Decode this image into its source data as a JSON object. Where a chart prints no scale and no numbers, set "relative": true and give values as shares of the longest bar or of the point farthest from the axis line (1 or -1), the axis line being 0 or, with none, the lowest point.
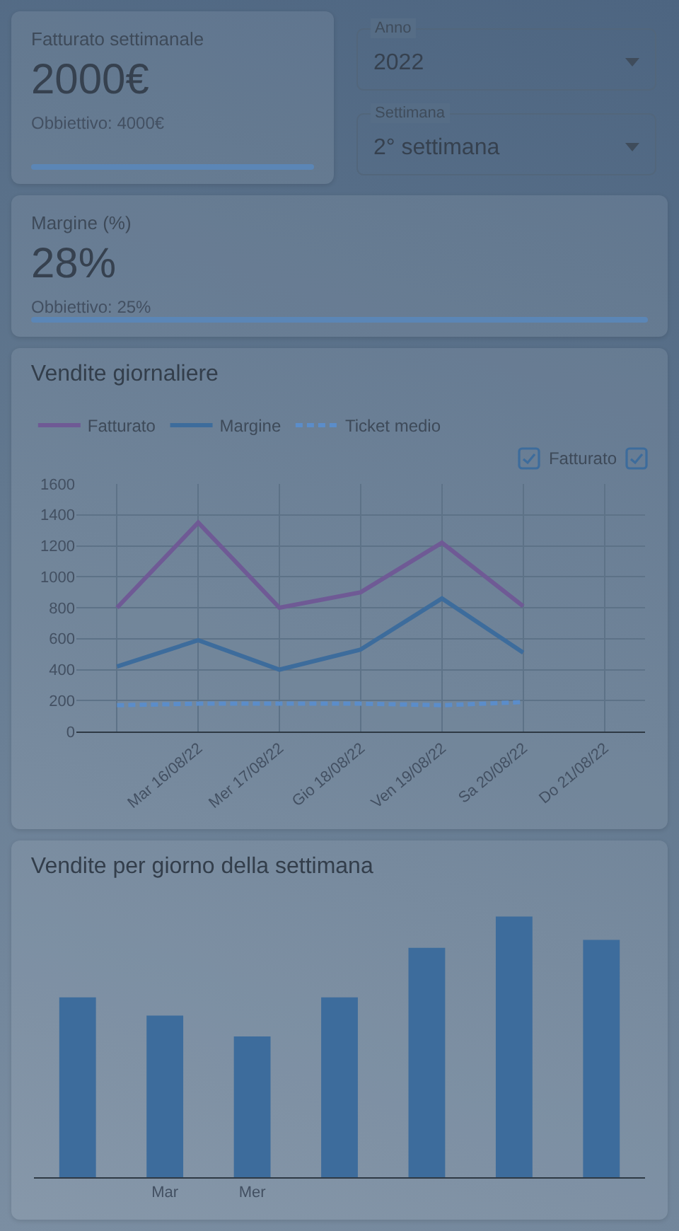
{
  "chart_data": [
    {
      "type": "other",
      "title": "Fatturato settimanale",
      "annotations": [
        "2000€",
        "Obbiettivo: 4000€"
      ]
    },
    {
      "type": "other",
      "annotations": [
        "Anno",
        "2022",
        "Settimana",
        "2° settimana"
      ]
    },
    {
      "type": "other",
      "title": "Margine (%)",
      "annotations": [
        "28%",
        "Obbiettivo: 25%"
      ]
    },
    {
      "type": "line",
      "title": "Vendite giornaliere",
      "categories": [
        null,
        "Mar 16/08/22",
        "Mer 17/08/22",
        "Gio 18/08/22",
        "Ven 19/08/22",
        "Sa 20/08/22",
        "Do 21/08/22"
      ],
      "series": [
        {
          "name": "Fatturato",
          "color": "#6f5a95",
          "values": [
            800,
            1350,
            800,
            900,
            1220,
            810,
            null
          ]
        },
        {
          "name": "Margine",
          "color": "#3d6c9c",
          "values": [
            420,
            590,
            400,
            530,
            860,
            510,
            null
          ]
        },
        {
          "name": "Ticket medio",
          "color": "#5b8dca",
          "line_style": "dashed",
          "values": [
            170,
            180,
            180,
            180,
            170,
            190,
            null
          ]
        }
      ],
      "ylim": [
        0,
        1600
      ],
      "yticks": [
        0,
        200,
        400,
        600,
        800,
        1000,
        1200,
        1400,
        1600
      ],
      "grid": true,
      "legend": "top left",
      "annotations": [
        "Fatturato"
      ]
    },
    {
      "type": "bar",
      "title": "Vendite per giorno della settimana",
      "categories": [
        null,
        "Mar",
        "Mer",
        null,
        null,
        null,
        null
      ],
      "values": [
        0.69,
        0.62,
        0.54,
        0.69,
        0.88,
        1,
        0.91
      ],
      "color": "#3d6c9c",
      "relative": true,
      "tick_labels": "x"
    }
  ]
}
